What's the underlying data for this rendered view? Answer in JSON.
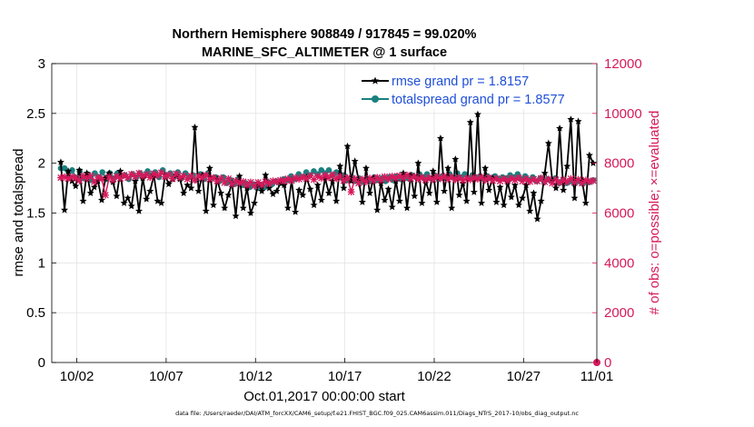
{
  "chart_data": {
    "type": "line",
    "title": "Northern Hemisphere 908849 / 917845 = 99.020%",
    "subtitle": "MARINE_SFC_ALTIMETER @ 1 surface",
    "xlabel": "Oct.01,2017 00:00:00 start",
    "ylabel_left": "rmse and totalspread",
    "ylabel_right": "# of obs: o=possible; ×=evaluated",
    "footer": "data file: /Users/raeder/DAI/ATM_forcXX/CAM6_setup/f.e21.FHIST_BGC.f09_025.CAM6assim.011/Diags_NTrS_2017-10/obs_diag_output.nc",
    "x_range": [
      0.6,
      31.1
    ],
    "x_ticks": [
      {
        "value": 2,
        "label": "10/02"
      },
      {
        "value": 7,
        "label": "10/07"
      },
      {
        "value": 12,
        "label": "10/12"
      },
      {
        "value": 17,
        "label": "10/17"
      },
      {
        "value": 22,
        "label": "10/22"
      },
      {
        "value": 27,
        "label": "10/27"
      },
      {
        "value": 32,
        "label": "11/01"
      }
    ],
    "ylim_left": [
      0,
      3
    ],
    "yticks_left": [
      "0",
      "0.5",
      "1",
      "1.5",
      "2",
      "2.5",
      "3"
    ],
    "ylim_right": [
      0,
      12000
    ],
    "yticks_right": [
      "0",
      "2000",
      "4000",
      "6000",
      "8000",
      "10000",
      "12000"
    ],
    "grid": true,
    "legend_placement": "top-right",
    "colors": {
      "rmse": "#000000",
      "totalspread": "#1a8080",
      "obs": "#d6195b",
      "ticks_right": "#d6195b",
      "legend_text": "#1f4fd8",
      "grid": "#dcdcdc"
    },
    "series": [
      {
        "name": "rmse grand pr = 1.8157",
        "axis": "left",
        "marker": "star",
        "values": [
          2.01,
          1.53,
          1.92,
          1.82,
          1.77,
          1.93,
          1.62,
          1.9,
          1.7,
          1.76,
          1.82,
          1.63,
          1.85,
          1.9,
          1.81,
          1.67,
          1.92,
          1.6,
          1.65,
          1.57,
          1.82,
          1.52,
          1.85,
          1.64,
          1.72,
          1.88,
          1.62,
          1.6,
          1.88,
          1.79,
          1.84,
          1.88,
          1.84,
          1.7,
          1.78,
          1.75,
          2.36,
          1.72,
          1.88,
          1.52,
          1.95,
          1.58,
          1.84,
          1.7,
          1.55,
          1.68,
          1.8,
          1.47,
          1.87,
          1.55,
          1.75,
          1.5,
          1.6,
          1.8,
          1.72,
          1.88,
          1.75,
          1.69,
          1.72,
          1.8,
          1.78,
          1.55,
          1.83,
          1.51,
          1.73,
          1.68,
          1.86,
          1.74,
          1.58,
          1.78,
          1.63,
          1.85,
          1.7,
          1.82,
          1.62,
          1.97,
          1.75,
          2.17,
          1.82,
          2.02,
          1.83,
          1.61,
          1.95,
          1.7,
          1.85,
          1.53,
          1.8,
          1.63,
          1.74,
          1.56,
          1.82,
          1.62,
          1.9,
          1.55,
          1.88,
          1.67,
          2.0,
          1.6,
          1.82,
          1.7,
          1.92,
          1.61,
          2.25,
          1.72,
          1.95,
          1.55,
          2.04,
          1.68,
          1.8,
          1.62,
          2.41,
          1.71,
          2.49,
          1.6,
          1.95,
          1.73,
          1.85,
          1.61,
          1.76,
          1.58,
          1.81,
          1.66,
          1.78,
          1.58,
          1.65,
          1.78,
          1.52,
          1.7,
          1.44,
          1.62,
          1.9,
          2.2,
          1.83,
          1.75,
          2.35,
          1.73,
          1.97,
          2.44,
          1.65,
          2.42,
          1.83,
          1.6,
          2.08,
          2.0
        ]
      },
      {
        "name": "totalspread grand pr = 1.8577",
        "axis": "left",
        "marker": "circle",
        "values": [
          1.95,
          1.95,
          1.87,
          1.93,
          1.85,
          1.92,
          1.85,
          1.89,
          1.83,
          1.9,
          1.86,
          1.91,
          1.84,
          1.9,
          1.85,
          1.9,
          1.87,
          1.88,
          1.84,
          1.89,
          1.86,
          1.9,
          1.87,
          1.92,
          1.88,
          1.91,
          1.86,
          1.93,
          1.87,
          1.9,
          1.86,
          1.91,
          1.85,
          1.9,
          1.86,
          1.88,
          1.83,
          1.89,
          1.84,
          1.9,
          1.85,
          1.86,
          1.82,
          1.86,
          1.8,
          1.83,
          1.79,
          1.84,
          1.78,
          1.8,
          1.76,
          1.79,
          1.75,
          1.78,
          1.76,
          1.81,
          1.79,
          1.82,
          1.8,
          1.84,
          1.83,
          1.87,
          1.84,
          1.89,
          1.86,
          1.91,
          1.88,
          1.92,
          1.89,
          1.93,
          1.9,
          1.93,
          1.88,
          1.91,
          1.86,
          1.88,
          1.83,
          1.86,
          1.82,
          1.85,
          1.81,
          1.85,
          1.82,
          1.86,
          1.83,
          1.85,
          1.82,
          1.86,
          1.83,
          1.87,
          1.84,
          1.87,
          1.85,
          1.88,
          1.86,
          1.89,
          1.86,
          1.89,
          1.85,
          1.88,
          1.84,
          1.87,
          1.85,
          1.89,
          1.86,
          1.9,
          1.86,
          1.89,
          1.85,
          1.88,
          1.85,
          1.87,
          1.84,
          1.87,
          1.85,
          1.87,
          1.84,
          1.86,
          1.85,
          1.88,
          1.86,
          1.89,
          1.84,
          1.87,
          1.83,
          1.86,
          1.82,
          1.85,
          1.81,
          1.84,
          1.82,
          1.85,
          1.8,
          1.83,
          1.8,
          1.82,
          1.79,
          1.82,
          1.8,
          1.81,
          1.81,
          1.83
        ]
      },
      {
        "name": "# of obs evaluated",
        "axis": "right",
        "marker": "x",
        "values": [
          7420,
          7450,
          7380,
          7460,
          7410,
          7300,
          7480,
          7390,
          7500,
          7250,
          7440,
          7380,
          6720,
          7450,
          7330,
          7480,
          7390,
          7520,
          7420,
          7560,
          7460,
          7600,
          7480,
          7550,
          7430,
          7580,
          7500,
          7620,
          7460,
          7540,
          7380,
          7580,
          7420,
          7500,
          7360,
          7490,
          7320,
          7480,
          7410,
          7530,
          7360,
          7420,
          7280,
          7400,
          7220,
          7380,
          7160,
          7300,
          7200,
          7260,
          7120,
          7240,
          7080,
          7230,
          7120,
          7260,
          7180,
          7290,
          7250,
          7320,
          7280,
          7380,
          7300,
          7420,
          7360,
          7450,
          7380,
          7500,
          7340,
          7480,
          7400,
          7520,
          7420,
          7540,
          7380,
          7480,
          7300,
          7420,
          6850,
          7380,
          7200,
          7360,
          7250,
          7400,
          7300,
          7430,
          7320,
          7460,
          7360,
          7480,
          7390,
          7500,
          7400,
          7520,
          7380,
          7480,
          7360,
          7440,
          7330,
          7420,
          7350,
          7460,
          7380,
          7480,
          7360,
          7450,
          7340,
          7420,
          7310,
          7400,
          7340,
          7430,
          7360,
          7450,
          7320,
          7420,
          7300,
          7390,
          7280,
          7380,
          7300,
          7400,
          7320,
          7420,
          7280,
          7380,
          7260,
          7360,
          7280,
          7400,
          7250,
          7360,
          7200,
          7340,
          7220,
          7330,
          7250,
          7380,
          7230,
          7350,
          7200,
          7320,
          7260,
          7300
        ]
      },
      {
        "name": "# of obs possible",
        "axis": "right",
        "marker": "circle",
        "values": [
          0
        ]
      }
    ],
    "legend": [
      {
        "label": "rmse grand pr = 1.8157",
        "series": "rmse"
      },
      {
        "label": "totalspread grand pr = 1.8577",
        "series": "totalspread"
      }
    ]
  }
}
